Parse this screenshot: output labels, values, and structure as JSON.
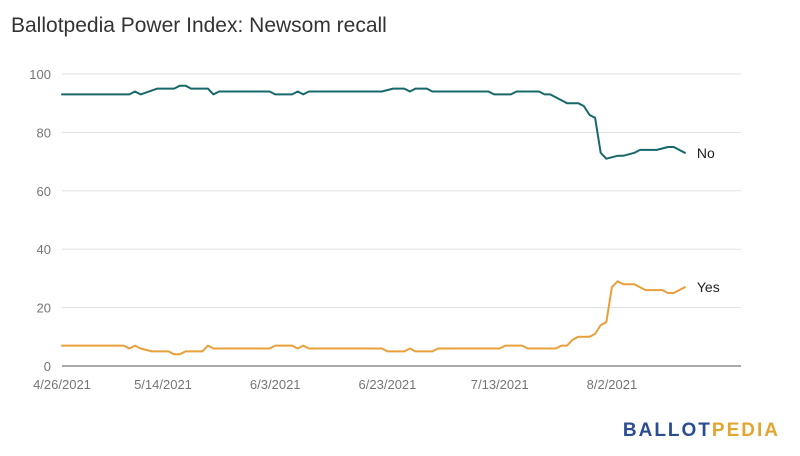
{
  "chart_data": {
    "type": "line",
    "title": "Ballotpedia Power Index: Newsom recall",
    "xlabel": "",
    "ylabel": "",
    "ylim": [
      0,
      100
    ],
    "yticks": [
      "0",
      "20",
      "40",
      "60",
      "80",
      "100"
    ],
    "xticks": [
      "4/26/2021",
      "5/14/2021",
      "6/3/2021",
      "6/23/2021",
      "7/13/2021",
      "8/2/2021"
    ],
    "x_start": "4/26/2021",
    "x_end": "8/25/2021",
    "grid": true,
    "legend": "line-end labels",
    "series": [
      {
        "name": "No",
        "color": "#17686b",
        "points": [
          [
            "4/26/2021",
            93
          ],
          [
            "5/2/2021",
            93
          ],
          [
            "5/8/2021",
            93
          ],
          [
            "5/9/2021",
            94
          ],
          [
            "5/10/2021",
            93
          ],
          [
            "5/13/2021",
            95
          ],
          [
            "5/16/2021",
            95
          ],
          [
            "5/17/2021",
            96
          ],
          [
            "5/18/2021",
            96
          ],
          [
            "5/19/2021",
            95
          ],
          [
            "5/22/2021",
            95
          ],
          [
            "5/23/2021",
            93
          ],
          [
            "5/24/2021",
            94
          ],
          [
            "6/2/2021",
            94
          ],
          [
            "6/3/2021",
            93
          ],
          [
            "6/6/2021",
            93
          ],
          [
            "6/7/2021",
            94
          ],
          [
            "6/8/2021",
            93
          ],
          [
            "6/9/2021",
            94
          ],
          [
            "6/22/2021",
            94
          ],
          [
            "6/24/2021",
            95
          ],
          [
            "6/26/2021",
            95
          ],
          [
            "6/27/2021",
            94
          ],
          [
            "6/28/2021",
            95
          ],
          [
            "6/30/2021",
            95
          ],
          [
            "7/1/2021",
            94
          ],
          [
            "7/11/2021",
            94
          ],
          [
            "7/12/2021",
            93
          ],
          [
            "7/15/2021",
            93
          ],
          [
            "7/16/2021",
            94
          ],
          [
            "7/20/2021",
            94
          ],
          [
            "7/21/2021",
            93
          ],
          [
            "7/22/2021",
            93
          ],
          [
            "7/24/2021",
            91
          ],
          [
            "7/25/2021",
            90
          ],
          [
            "7/27/2021",
            90
          ],
          [
            "7/28/2021",
            89
          ],
          [
            "7/29/2021",
            86
          ],
          [
            "7/30/2021",
            85
          ],
          [
            "7/31/2021",
            73
          ],
          [
            "8/1/2021",
            71
          ],
          [
            "8/3/2021",
            72
          ],
          [
            "8/4/2021",
            72
          ],
          [
            "8/6/2021",
            73
          ],
          [
            "8/7/2021",
            74
          ],
          [
            "8/10/2021",
            74
          ],
          [
            "8/12/2021",
            75
          ],
          [
            "8/13/2021",
            75
          ],
          [
            "8/15/2021",
            73
          ]
        ]
      },
      {
        "name": "Yes",
        "color": "#e9a03b",
        "points": [
          [
            "4/26/2021",
            7
          ],
          [
            "5/7/2021",
            7
          ],
          [
            "5/8/2021",
            6
          ],
          [
            "5/9/2021",
            7
          ],
          [
            "5/10/2021",
            6
          ],
          [
            "5/12/2021",
            5
          ],
          [
            "5/15/2021",
            5
          ],
          [
            "5/16/2021",
            4
          ],
          [
            "5/17/2021",
            4
          ],
          [
            "5/18/2021",
            5
          ],
          [
            "5/21/2021",
            5
          ],
          [
            "5/22/2021",
            7
          ],
          [
            "5/23/2021",
            6
          ],
          [
            "6/2/2021",
            6
          ],
          [
            "6/3/2021",
            7
          ],
          [
            "6/6/2021",
            7
          ],
          [
            "6/7/2021",
            6
          ],
          [
            "6/8/2021",
            7
          ],
          [
            "6/9/2021",
            6
          ],
          [
            "6/22/2021",
            6
          ],
          [
            "6/23/2021",
            5
          ],
          [
            "6/26/2021",
            5
          ],
          [
            "6/27/2021",
            6
          ],
          [
            "6/28/2021",
            5
          ],
          [
            "7/1/2021",
            5
          ],
          [
            "7/2/2021",
            6
          ],
          [
            "7/13/2021",
            6
          ],
          [
            "7/14/2021",
            7
          ],
          [
            "7/17/2021",
            7
          ],
          [
            "7/18/2021",
            6
          ],
          [
            "7/23/2021",
            6
          ],
          [
            "7/24/2021",
            7
          ],
          [
            "7/25/2021",
            7
          ],
          [
            "7/26/2021",
            9
          ],
          [
            "7/27/2021",
            10
          ],
          [
            "7/29/2021",
            10
          ],
          [
            "7/30/2021",
            11
          ],
          [
            "7/31/2021",
            14
          ],
          [
            "8/1/2021",
            15
          ],
          [
            "8/2/2021",
            27
          ],
          [
            "8/3/2021",
            29
          ],
          [
            "8/4/2021",
            28
          ],
          [
            "8/6/2021",
            28
          ],
          [
            "8/7/2021",
            27
          ],
          [
            "8/8/2021",
            26
          ],
          [
            "8/11/2021",
            26
          ],
          [
            "8/12/2021",
            25
          ],
          [
            "8/13/2021",
            25
          ],
          [
            "8/15/2021",
            27
          ]
        ]
      }
    ]
  },
  "branding": {
    "logo_part1": "BALLOT",
    "logo_part2": "PEDIA",
    "color_part1": "#2a4d8f",
    "color_part2": "#e3a52f"
  }
}
